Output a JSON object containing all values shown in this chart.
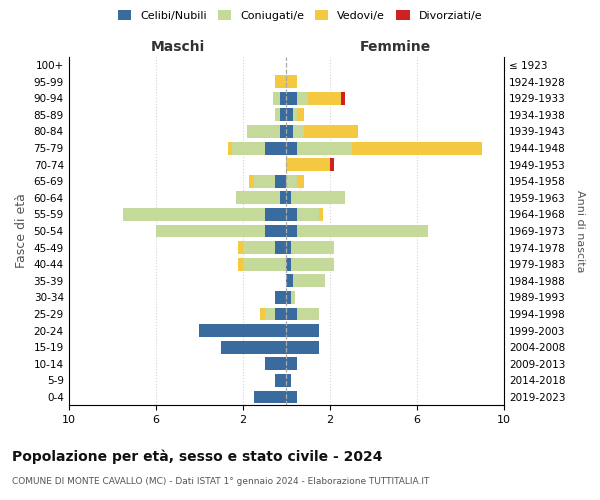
{
  "age_groups": [
    "0-4",
    "5-9",
    "10-14",
    "15-19",
    "20-24",
    "25-29",
    "30-34",
    "35-39",
    "40-44",
    "45-49",
    "50-54",
    "55-59",
    "60-64",
    "65-69",
    "70-74",
    "75-79",
    "80-84",
    "85-89",
    "90-94",
    "95-99",
    "100+"
  ],
  "birth_years": [
    "2019-2023",
    "2014-2018",
    "2009-2013",
    "2004-2008",
    "1999-2003",
    "1994-1998",
    "1989-1993",
    "1984-1988",
    "1979-1983",
    "1974-1978",
    "1969-1973",
    "1964-1968",
    "1959-1963",
    "1954-1958",
    "1949-1953",
    "1944-1948",
    "1939-1943",
    "1934-1938",
    "1929-1933",
    "1924-1928",
    "≤ 1923"
  ],
  "males": {
    "celibi": [
      1.5,
      0.5,
      1.0,
      3.0,
      4.0,
      0.5,
      0.5,
      0.0,
      0.0,
      0.5,
      1.0,
      1.0,
      0.3,
      0.5,
      0.0,
      1.0,
      0.3,
      0.3,
      0.3,
      0.0,
      0.0
    ],
    "coniugati": [
      0.0,
      0.0,
      0.0,
      0.0,
      0.0,
      0.5,
      0.0,
      0.0,
      2.0,
      1.5,
      5.0,
      6.5,
      2.0,
      1.0,
      0.0,
      1.5,
      1.5,
      0.2,
      0.3,
      0.0,
      0.0
    ],
    "vedovi": [
      0.0,
      0.0,
      0.0,
      0.0,
      0.0,
      0.2,
      0.0,
      0.0,
      0.2,
      0.2,
      0.0,
      0.0,
      0.0,
      0.2,
      0.0,
      0.2,
      0.0,
      0.0,
      0.0,
      0.5,
      0.0
    ],
    "divorziati": [
      0.0,
      0.0,
      0.0,
      0.0,
      0.0,
      0.0,
      0.0,
      0.0,
      0.0,
      0.0,
      0.0,
      0.0,
      0.0,
      0.0,
      0.0,
      0.0,
      0.0,
      0.0,
      0.0,
      0.0,
      0.0
    ]
  },
  "females": {
    "nubili": [
      0.5,
      0.2,
      0.5,
      1.5,
      1.5,
      0.5,
      0.2,
      0.3,
      0.2,
      0.2,
      0.5,
      0.5,
      0.2,
      0.0,
      0.0,
      0.5,
      0.3,
      0.3,
      0.5,
      0.0,
      0.0
    ],
    "coniugate": [
      0.0,
      0.0,
      0.0,
      0.0,
      0.0,
      1.0,
      0.2,
      1.5,
      2.0,
      2.0,
      6.0,
      1.0,
      2.5,
      0.5,
      0.0,
      2.5,
      0.5,
      0.2,
      0.5,
      0.0,
      0.0
    ],
    "vedove": [
      0.0,
      0.0,
      0.0,
      0.0,
      0.0,
      0.0,
      0.0,
      0.0,
      0.0,
      0.0,
      0.0,
      0.2,
      0.0,
      0.3,
      2.0,
      6.0,
      2.5,
      0.3,
      1.5,
      0.5,
      0.0
    ],
    "divorziate": [
      0.0,
      0.0,
      0.0,
      0.0,
      0.0,
      0.0,
      0.0,
      0.0,
      0.0,
      0.0,
      0.0,
      0.0,
      0.0,
      0.0,
      0.2,
      0.0,
      0.0,
      0.0,
      0.2,
      0.0,
      0.0
    ]
  },
  "colors": {
    "celibi": "#3a6b9e",
    "coniugati": "#c5d99a",
    "vedovi": "#f5c842",
    "divorziati": "#cc2222"
  },
  "xlim": 10,
  "xtick_positions": [
    -10,
    -6,
    -2,
    2,
    6,
    10
  ],
  "title": "Popolazione per età, sesso e stato civile - 2024",
  "subtitle": "COMUNE DI MONTE CAVALLO (MC) - Dati ISTAT 1° gennaio 2024 - Elaborazione TUTTITALIA.IT",
  "ylabel_left": "Fasce di età",
  "ylabel_right": "Anni di nascita",
  "xlabel_left": "Maschi",
  "xlabel_right": "Femmine"
}
